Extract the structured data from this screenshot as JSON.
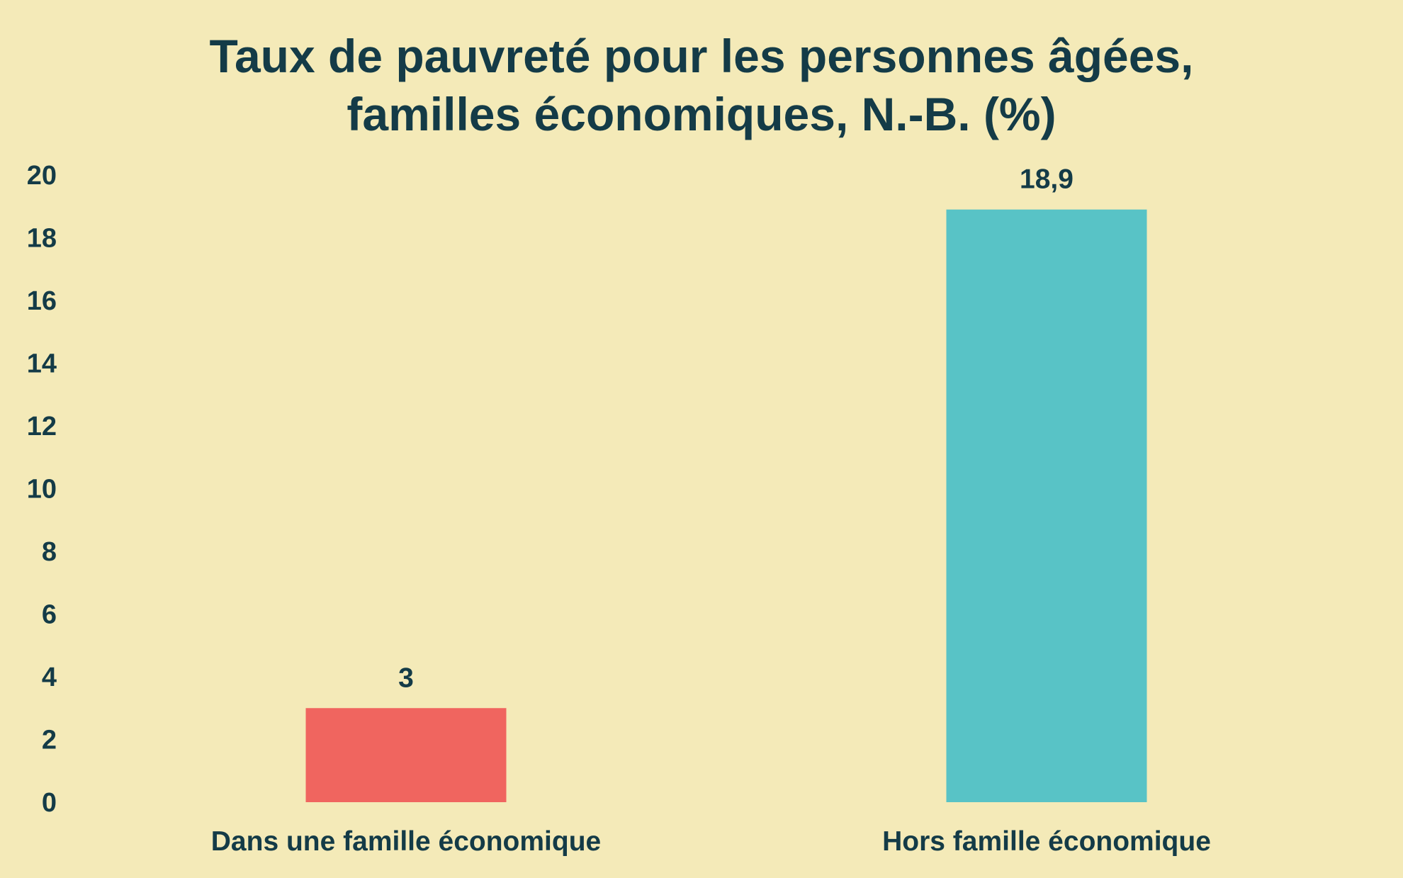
{
  "chart_data": {
    "type": "bar",
    "title_lines": [
      "Taux de pauvreté pour les personnes âgées,",
      "familles économiques, N.-B. (%)"
    ],
    "categories": [
      "Dans une famille économique",
      "Hors famille économique"
    ],
    "values": [
      3,
      18.9
    ],
    "value_labels": [
      "3",
      "18,9"
    ],
    "bar_colors": [
      "#f0655f",
      "#58c3c6"
    ],
    "ylim": [
      0,
      20
    ],
    "yticks": [
      "0",
      "2",
      "4",
      "6",
      "8",
      "10",
      "12",
      "14",
      "16",
      "18",
      "20"
    ],
    "xlabel": "",
    "ylabel": "",
    "grid": false,
    "legend": "none"
  },
  "colors": {
    "background": "#f4eab8",
    "text": "#143b47"
  }
}
